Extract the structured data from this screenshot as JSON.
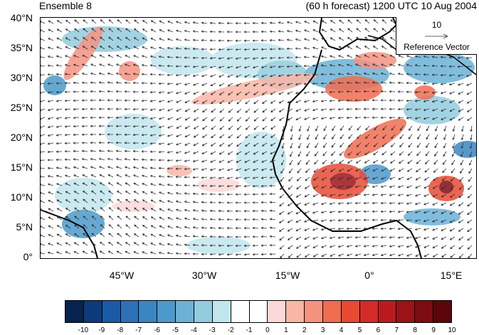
{
  "title_left": "Ensemble 8",
  "title_right": "(60 h forecast) 1200 UTC 10 Aug 2004",
  "lat_labels": [
    "40°N",
    "35°N",
    "30°N",
    "25°N",
    "20°N",
    "15°N",
    "10°N",
    "5°N",
    "0°"
  ],
  "lon_labels": [
    "45°W",
    "30°W",
    "15°W",
    "0°",
    "15°E"
  ],
  "reference_vector": {
    "magnitude": "10",
    "label": "Reference Vector"
  },
  "colorbar": {
    "colors": [
      "#08224f",
      "#0e3a7a",
      "#1a5ba6",
      "#2d72b8",
      "#3a86c2",
      "#4c9acb",
      "#6bb2d6",
      "#92ccdd",
      "#c2e6ee",
      "#ffffff",
      "#ffffff",
      "#fcd9d9",
      "#f9b6a7",
      "#f69380",
      "#f06c50",
      "#e84a34",
      "#d42a2a",
      "#bb1b1f",
      "#9c1219",
      "#7d0c12",
      "#5c0609"
    ],
    "tick_labels": [
      "-10",
      "-9",
      "-8",
      "-7",
      "-6",
      "-5",
      "-4",
      "-3",
      "-2",
      "-1",
      "0",
      "1",
      "2",
      "3",
      "4",
      "5",
      "6",
      "7",
      "8",
      "9",
      "10"
    ]
  }
}
